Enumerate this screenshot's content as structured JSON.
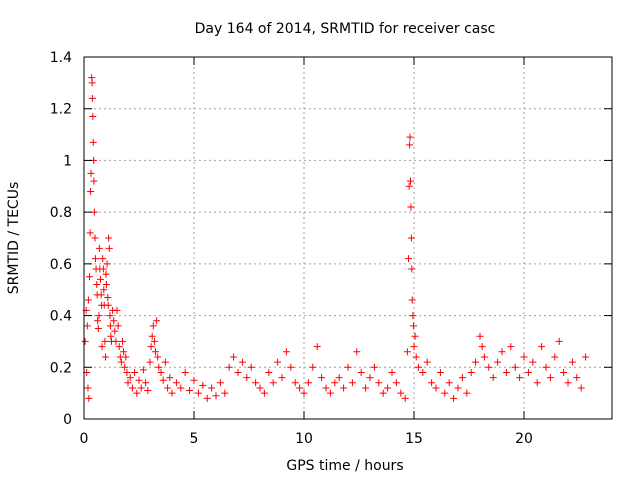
{
  "chart_data": {
    "type": "scatter",
    "title": "Day 164 of 2014, SRMTID for receiver casc",
    "xlabel": "GPS time / hours",
    "ylabel": "SRMTID / TECUs",
    "xlim": [
      0,
      24
    ],
    "ylim": [
      0,
      1.4
    ],
    "xticks": [
      0,
      5,
      10,
      15,
      20
    ],
    "xtick_labels": [
      "0",
      "5",
      "10",
      "15",
      "20"
    ],
    "yticks": [
      0,
      0.2,
      0.4,
      0.6,
      0.8,
      1.0,
      1.2,
      1.4
    ],
    "ytick_labels": [
      "0",
      "0.2",
      "0.4",
      "0.6",
      "0.8",
      "1",
      "1.2",
      "1.4"
    ],
    "grid": true,
    "marker": "plus",
    "series": [
      {
        "name": "SRMTID",
        "color": "#ff0000",
        "points": [
          [
            0.05,
            0.3
          ],
          [
            0.1,
            0.42
          ],
          [
            0.12,
            0.18
          ],
          [
            0.15,
            0.36
          ],
          [
            0.18,
            0.12
          ],
          [
            0.2,
            0.46
          ],
          [
            0.22,
            0.08
          ],
          [
            0.25,
            0.55
          ],
          [
            0.28,
            0.72
          ],
          [
            0.3,
            0.88
          ],
          [
            0.32,
            0.95
          ],
          [
            0.35,
            1.32
          ],
          [
            0.37,
            1.3
          ],
          [
            0.38,
            1.24
          ],
          [
            0.4,
            1.17
          ],
          [
            0.42,
            1.07
          ],
          [
            0.44,
            1.0
          ],
          [
            0.45,
            0.92
          ],
          [
            0.47,
            0.8
          ],
          [
            0.5,
            0.7
          ],
          [
            0.52,
            0.62
          ],
          [
            0.55,
            0.58
          ],
          [
            0.58,
            0.52
          ],
          [
            0.6,
            0.48
          ],
          [
            0.62,
            0.38
          ],
          [
            0.65,
            0.35
          ],
          [
            0.68,
            0.4
          ],
          [
            0.7,
            0.66
          ],
          [
            0.72,
            0.58
          ],
          [
            0.75,
            0.54
          ],
          [
            0.78,
            0.48
          ],
          [
            0.8,
            0.44
          ],
          [
            0.82,
            0.28
          ],
          [
            0.85,
            0.62
          ],
          [
            0.88,
            0.58
          ],
          [
            0.9,
            0.5
          ],
          [
            0.92,
            0.44
          ],
          [
            0.95,
            0.3
          ],
          [
            0.98,
            0.24
          ],
          [
            1.0,
            0.56
          ],
          [
            1.02,
            0.52
          ],
          [
            1.05,
            0.6
          ],
          [
            1.08,
            0.47
          ],
          [
            1.1,
            0.44
          ],
          [
            1.12,
            0.7
          ],
          [
            1.15,
            0.66
          ],
          [
            1.18,
            0.4
          ],
          [
            1.2,
            0.36
          ],
          [
            1.22,
            0.32
          ],
          [
            1.25,
            0.3
          ],
          [
            1.3,
            0.42
          ],
          [
            1.35,
            0.38
          ],
          [
            1.4,
            0.34
          ],
          [
            1.45,
            0.3
          ],
          [
            1.5,
            0.42
          ],
          [
            1.55,
            0.36
          ],
          [
            1.6,
            0.28
          ],
          [
            1.65,
            0.24
          ],
          [
            1.7,
            0.22
          ],
          [
            1.75,
            0.3
          ],
          [
            1.8,
            0.26
          ],
          [
            1.85,
            0.2
          ],
          [
            1.9,
            0.24
          ],
          [
            1.95,
            0.18
          ],
          [
            2.0,
            0.14
          ],
          [
            2.1,
            0.16
          ],
          [
            2.2,
            0.12
          ],
          [
            2.3,
            0.18
          ],
          [
            2.4,
            0.1
          ],
          [
            2.5,
            0.15
          ],
          [
            2.6,
            0.12
          ],
          [
            2.7,
            0.19
          ],
          [
            2.8,
            0.14
          ],
          [
            2.9,
            0.11
          ],
          [
            3.0,
            0.22
          ],
          [
            3.05,
            0.28
          ],
          [
            3.1,
            0.32
          ],
          [
            3.15,
            0.36
          ],
          [
            3.2,
            0.3
          ],
          [
            3.25,
            0.26
          ],
          [
            3.3,
            0.38
          ],
          [
            3.35,
            0.24
          ],
          [
            3.4,
            0.2
          ],
          [
            3.5,
            0.18
          ],
          [
            3.6,
            0.15
          ],
          [
            3.7,
            0.22
          ],
          [
            3.8,
            0.12
          ],
          [
            3.9,
            0.16
          ],
          [
            4.0,
            0.1
          ],
          [
            4.2,
            0.14
          ],
          [
            4.4,
            0.12
          ],
          [
            4.6,
            0.18
          ],
          [
            4.8,
            0.11
          ],
          [
            5.0,
            0.15
          ],
          [
            5.2,
            0.1
          ],
          [
            5.4,
            0.13
          ],
          [
            5.6,
            0.08
          ],
          [
            5.8,
            0.12
          ],
          [
            6.0,
            0.09
          ],
          [
            6.2,
            0.14
          ],
          [
            6.4,
            0.1
          ],
          [
            6.6,
            0.2
          ],
          [
            6.8,
            0.24
          ],
          [
            7.0,
            0.18
          ],
          [
            7.2,
            0.22
          ],
          [
            7.4,
            0.16
          ],
          [
            7.6,
            0.2
          ],
          [
            7.8,
            0.14
          ],
          [
            8.0,
            0.12
          ],
          [
            8.2,
            0.1
          ],
          [
            8.4,
            0.18
          ],
          [
            8.6,
            0.14
          ],
          [
            8.8,
            0.22
          ],
          [
            9.0,
            0.16
          ],
          [
            9.2,
            0.26
          ],
          [
            9.4,
            0.2
          ],
          [
            9.6,
            0.14
          ],
          [
            9.8,
            0.12
          ],
          [
            10.0,
            0.1
          ],
          [
            10.2,
            0.14
          ],
          [
            10.4,
            0.2
          ],
          [
            10.6,
            0.28
          ],
          [
            10.8,
            0.16
          ],
          [
            11.0,
            0.12
          ],
          [
            11.2,
            0.1
          ],
          [
            11.4,
            0.14
          ],
          [
            11.6,
            0.16
          ],
          [
            11.8,
            0.12
          ],
          [
            12.0,
            0.2
          ],
          [
            12.2,
            0.14
          ],
          [
            12.4,
            0.26
          ],
          [
            12.6,
            0.18
          ],
          [
            12.8,
            0.12
          ],
          [
            13.0,
            0.16
          ],
          [
            13.2,
            0.2
          ],
          [
            13.4,
            0.14
          ],
          [
            13.6,
            0.1
          ],
          [
            13.8,
            0.12
          ],
          [
            14.0,
            0.18
          ],
          [
            14.2,
            0.14
          ],
          [
            14.4,
            0.1
          ],
          [
            14.6,
            0.08
          ],
          [
            14.7,
            0.26
          ],
          [
            14.75,
            0.62
          ],
          [
            14.78,
            0.9
          ],
          [
            14.8,
            1.06
          ],
          [
            14.82,
            1.09
          ],
          [
            14.84,
            0.92
          ],
          [
            14.86,
            0.82
          ],
          [
            14.88,
            0.7
          ],
          [
            14.9,
            0.58
          ],
          [
            14.92,
            0.46
          ],
          [
            14.95,
            0.4
          ],
          [
            14.98,
            0.36
          ],
          [
            15.0,
            0.28
          ],
          [
            15.05,
            0.32
          ],
          [
            15.1,
            0.24
          ],
          [
            15.2,
            0.2
          ],
          [
            15.4,
            0.18
          ],
          [
            15.6,
            0.22
          ],
          [
            15.8,
            0.14
          ],
          [
            16.0,
            0.12
          ],
          [
            16.2,
            0.18
          ],
          [
            16.4,
            0.1
          ],
          [
            16.6,
            0.14
          ],
          [
            16.8,
            0.08
          ],
          [
            17.0,
            0.12
          ],
          [
            17.2,
            0.16
          ],
          [
            17.4,
            0.1
          ],
          [
            17.6,
            0.18
          ],
          [
            17.8,
            0.22
          ],
          [
            18.0,
            0.32
          ],
          [
            18.1,
            0.28
          ],
          [
            18.2,
            0.24
          ],
          [
            18.4,
            0.2
          ],
          [
            18.6,
            0.16
          ],
          [
            18.8,
            0.22
          ],
          [
            19.0,
            0.26
          ],
          [
            19.2,
            0.18
          ],
          [
            19.4,
            0.28
          ],
          [
            19.6,
            0.2
          ],
          [
            19.8,
            0.16
          ],
          [
            20.0,
            0.24
          ],
          [
            20.2,
            0.18
          ],
          [
            20.4,
            0.22
          ],
          [
            20.6,
            0.14
          ],
          [
            20.8,
            0.28
          ],
          [
            21.0,
            0.2
          ],
          [
            21.2,
            0.16
          ],
          [
            21.4,
            0.24
          ],
          [
            21.6,
            0.3
          ],
          [
            21.8,
            0.18
          ],
          [
            22.0,
            0.14
          ],
          [
            22.2,
            0.22
          ],
          [
            22.4,
            0.16
          ],
          [
            22.6,
            0.12
          ],
          [
            22.8,
            0.24
          ]
        ]
      }
    ]
  }
}
